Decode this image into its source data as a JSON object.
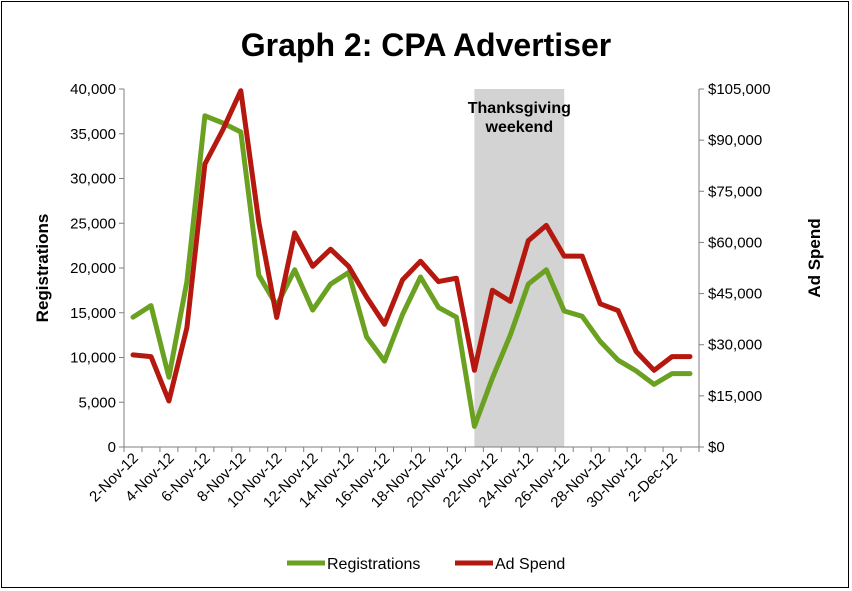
{
  "chart_data": {
    "type": "line",
    "title": "Graph 2: CPA Advertiser",
    "ylabel": "Registrations",
    "y2label": "Ad Spend",
    "ylim": [
      0,
      40000
    ],
    "y2lim": [
      0,
      105000
    ],
    "yticks": [
      "0",
      "5,000",
      "10,000",
      "15,000",
      "20,000",
      "25,000",
      "30,000",
      "35,000",
      "40,000"
    ],
    "y2ticks": [
      "$0",
      "$15,000",
      "$30,000",
      "$45,000",
      "$60,000",
      "$75,000",
      "$90,000",
      "$105,000"
    ],
    "x": [
      "2-Nov-12",
      "3-Nov-12",
      "4-Nov-12",
      "5-Nov-12",
      "6-Nov-12",
      "7-Nov-12",
      "8-Nov-12",
      "9-Nov-12",
      "10-Nov-12",
      "11-Nov-12",
      "12-Nov-12",
      "13-Nov-12",
      "14-Nov-12",
      "15-Nov-12",
      "16-Nov-12",
      "17-Nov-12",
      "18-Nov-12",
      "19-Nov-12",
      "20-Nov-12",
      "21-Nov-12",
      "22-Nov-12",
      "23-Nov-12",
      "24-Nov-12",
      "25-Nov-12",
      "26-Nov-12",
      "27-Nov-12",
      "28-Nov-12",
      "29-Nov-12",
      "30-Nov-12",
      "1-Dec-12",
      "2-Dec-12",
      "3-Dec-12"
    ],
    "xtick_labels": [
      "2-Nov-12",
      "4-Nov-12",
      "6-Nov-12",
      "8-Nov-12",
      "10-Nov-12",
      "12-Nov-12",
      "14-Nov-12",
      "16-Nov-12",
      "18-Nov-12",
      "20-Nov-12",
      "22-Nov-12",
      "24-Nov-12",
      "26-Nov-12",
      "28-Nov-12",
      "30-Nov-12",
      "2-Dec-12"
    ],
    "series": [
      {
        "name": "Registrations",
        "axis": "left",
        "color": "#6aa121",
        "values": [
          14500,
          15800,
          7800,
          18500,
          37000,
          36200,
          35200,
          19200,
          15800,
          19800,
          15300,
          18200,
          19500,
          12300,
          9600,
          14800,
          19000,
          15600,
          14500,
          2300,
          7700,
          12500,
          18200,
          19800,
          15200,
          14600,
          11800,
          9700,
          8500,
          7000,
          8200,
          8200
        ]
      },
      {
        "name": "Ad Spend",
        "axis": "right",
        "color": "#b5180e",
        "values": [
          27000,
          26500,
          13500,
          35000,
          83000,
          93000,
          104500,
          66000,
          38000,
          62800,
          53000,
          58000,
          53000,
          44000,
          36000,
          49000,
          54500,
          48500,
          49500,
          22500,
          46000,
          42700,
          60500,
          65000,
          56000,
          56000,
          42000,
          40000,
          28000,
          22500,
          26500,
          26500
        ]
      }
    ],
    "annotation": {
      "label_line1": "Thanksgiving",
      "label_line2": "weekend",
      "x_start": "21-Nov-12",
      "x_end": "26-Nov-12",
      "color": "#d3d3d3"
    },
    "legend": {
      "position": "bottom",
      "entries": [
        "Registrations",
        "Ad Spend"
      ]
    },
    "grid": false
  }
}
